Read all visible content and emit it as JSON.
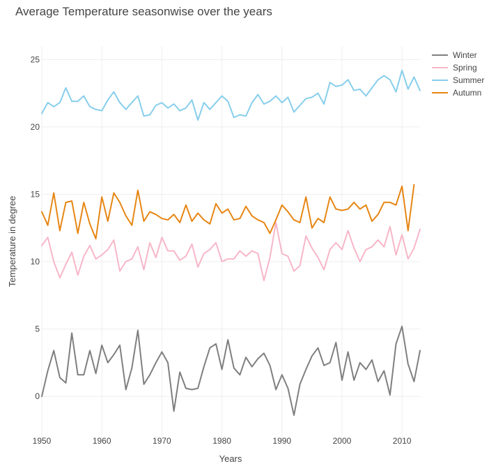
{
  "chart_data": {
    "type": "line",
    "title": "Average Temperature seasonwise over the years",
    "xlabel": "Years",
    "ylabel": "Temperature in degree",
    "xlim": [
      1950,
      2013
    ],
    "ylim": [
      -3.2,
      26
    ],
    "x_ticks": [
      1950,
      1960,
      1970,
      1980,
      1990,
      2000,
      2010
    ],
    "y_ticks": [
      0,
      5,
      10,
      15,
      20,
      25
    ],
    "grid": true,
    "legend_position": "top-right",
    "x": [
      1950,
      1951,
      1952,
      1953,
      1954,
      1955,
      1956,
      1957,
      1958,
      1959,
      1960,
      1961,
      1962,
      1963,
      1964,
      1965,
      1966,
      1967,
      1968,
      1969,
      1970,
      1971,
      1972,
      1973,
      1974,
      1975,
      1976,
      1977,
      1978,
      1979,
      1980,
      1981,
      1982,
      1983,
      1984,
      1985,
      1986,
      1987,
      1988,
      1989,
      1990,
      1991,
      1992,
      1993,
      1994,
      1995,
      1996,
      1997,
      1998,
      1999,
      2000,
      2001,
      2002,
      2003,
      2004,
      2005,
      2006,
      2007,
      2008,
      2009,
      2010,
      2011,
      2012,
      2013
    ],
    "series": [
      {
        "name": "Winter",
        "color": "#7f7f7f",
        "values": [
          0.0,
          1.9,
          3.4,
          1.4,
          1.0,
          4.7,
          1.6,
          1.6,
          3.4,
          1.7,
          3.8,
          2.5,
          3.1,
          3.8,
          0.5,
          2.1,
          4.9,
          0.9,
          1.6,
          2.5,
          3.3,
          2.5,
          -1.1,
          1.8,
          0.6,
          0.5,
          0.6,
          2.2,
          3.6,
          3.9,
          2.0,
          4.2,
          2.1,
          1.6,
          2.9,
          2.2,
          2.8,
          3.2,
          2.3,
          0.5,
          1.6,
          0.6,
          -1.4,
          0.9,
          2.0,
          3.0,
          3.6,
          2.3,
          2.5,
          4.0,
          1.2,
          3.3,
          1.2,
          2.5,
          2.0,
          2.7,
          1.1,
          1.9,
          0.1,
          3.9,
          5.2,
          2.4,
          1.1,
          3.4
        ]
      },
      {
        "name": "Spring",
        "color": "#f7b6c8",
        "values": [
          11.2,
          11.8,
          10.0,
          8.8,
          9.8,
          10.7,
          9.0,
          10.4,
          11.2,
          10.2,
          10.5,
          10.9,
          11.6,
          9.3,
          10.0,
          10.2,
          11.1,
          9.4,
          11.4,
          10.3,
          11.8,
          10.8,
          10.8,
          10.1,
          10.4,
          11.3,
          9.6,
          10.6,
          10.9,
          11.4,
          10.0,
          10.2,
          10.2,
          10.8,
          10.4,
          10.8,
          10.6,
          8.6,
          10.3,
          12.9,
          10.6,
          10.4,
          9.3,
          9.7,
          11.9,
          11.0,
          10.3,
          9.4,
          10.9,
          11.4,
          10.9,
          12.3,
          11.0,
          10.0,
          10.9,
          11.1,
          11.6,
          11.1,
          12.6,
          10.5,
          12.0,
          10.2,
          11.0,
          12.4
        ]
      },
      {
        "name": "Summer",
        "color": "#87ceeb",
        "values": [
          21.0,
          21.8,
          21.5,
          21.8,
          22.9,
          21.9,
          21.9,
          22.3,
          21.5,
          21.3,
          21.2,
          22.0,
          22.6,
          21.8,
          21.3,
          21.8,
          22.3,
          20.8,
          20.9,
          21.6,
          21.8,
          21.4,
          21.7,
          21.2,
          21.4,
          22.0,
          20.5,
          21.8,
          21.3,
          21.8,
          22.3,
          21.9,
          20.7,
          20.9,
          20.8,
          21.8,
          22.4,
          21.7,
          21.9,
          22.3,
          21.8,
          22.2,
          21.1,
          21.6,
          22.1,
          22.2,
          22.5,
          21.7,
          23.3,
          23.0,
          23.1,
          23.5,
          22.7,
          22.8,
          22.3,
          22.9,
          23.5,
          23.8,
          23.5,
          22.6,
          24.2,
          22.8,
          23.7,
          22.7
        ]
      },
      {
        "name": "Autumn",
        "color": "#e68613",
        "values": [
          13.7,
          12.7,
          15.1,
          12.3,
          14.4,
          14.5,
          12.1,
          14.4,
          12.8,
          11.7,
          14.8,
          13.0,
          15.1,
          14.4,
          13.4,
          12.7,
          15.3,
          13.0,
          13.7,
          13.5,
          13.2,
          13.1,
          13.5,
          12.9,
          14.2,
          13.0,
          13.6,
          13.1,
          12.8,
          14.3,
          13.6,
          13.9,
          13.1,
          13.2,
          14.1,
          13.4,
          13.1,
          12.9,
          12.1,
          13.1,
          14.2,
          13.7,
          13.1,
          12.9,
          14.8,
          12.5,
          13.2,
          12.9,
          14.8,
          13.9,
          13.8,
          13.9,
          14.4,
          13.9,
          14.2,
          13.0,
          13.5,
          14.4,
          14.4,
          14.2,
          15.6,
          12.3,
          15.7,
          null
        ]
      }
    ]
  }
}
